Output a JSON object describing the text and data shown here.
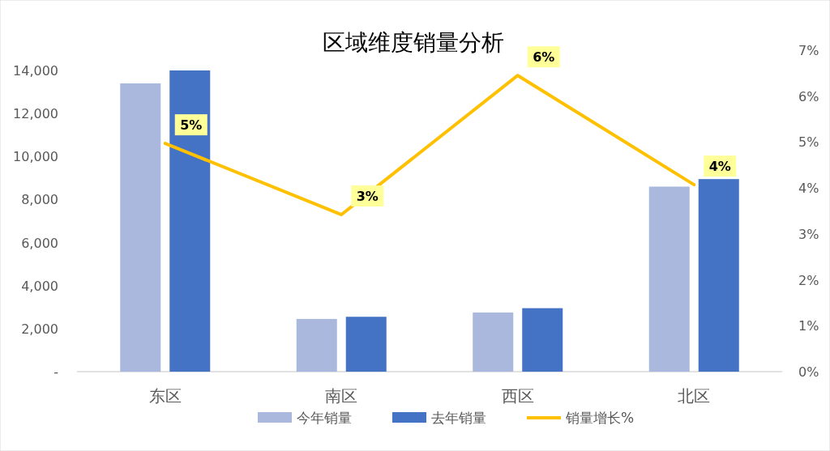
{
  "chart_data": {
    "type": "bar",
    "title": "区域维度销量分析",
    "categories": [
      "东区",
      "南区",
      "西区",
      "北区"
    ],
    "series": [
      {
        "name": "今年销量",
        "color": "#a9b8dc",
        "values": [
          13400,
          2450,
          2750,
          8600
        ]
      },
      {
        "name": "去年销量",
        "color": "#4472c4",
        "values": [
          14000,
          2550,
          2950,
          8950
        ]
      },
      {
        "name": "销量增长%",
        "type": "line",
        "axis": "y2",
        "color": "#ffc000",
        "values": [
          4.97,
          3.42,
          6.45,
          4.07
        ],
        "value_labels": [
          "5%",
          "3%",
          "6%",
          "4%"
        ]
      }
    ],
    "ylim": [
      0,
      14000
    ],
    "yticks": [
      {
        "value": 0,
        "label": "-"
      },
      {
        "value": 2000,
        "label": "2,000"
      },
      {
        "value": 4000,
        "label": "4,000"
      },
      {
        "value": 6000,
        "label": "6,000"
      },
      {
        "value": 8000,
        "label": "8,000"
      },
      {
        "value": 10000,
        "label": "10,000"
      },
      {
        "value": 12000,
        "label": "12,000"
      },
      {
        "value": 14000,
        "label": "14,000"
      }
    ],
    "y2lim": [
      0,
      7
    ],
    "y2ticks": [
      {
        "value": 0,
        "label": "0%"
      },
      {
        "value": 1,
        "label": "1%"
      },
      {
        "value": 2,
        "label": "2%"
      },
      {
        "value": 3,
        "label": "3%"
      },
      {
        "value": 4,
        "label": "4%"
      },
      {
        "value": 5,
        "label": "5%"
      },
      {
        "value": 6,
        "label": "6%"
      },
      {
        "value": 7,
        "label": "7%"
      }
    ],
    "legend": "bottom",
    "grid": false,
    "marker": "none"
  }
}
